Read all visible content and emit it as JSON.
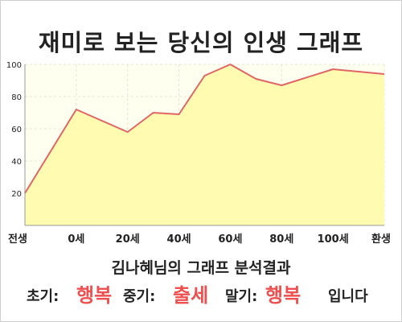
{
  "title": "재미로 보는 당신의 인생 그래프",
  "chart_data": {
    "type": "area",
    "title": "재미로 보는 당신의 인생 그래프",
    "xlabel": "",
    "ylabel": "",
    "x_tick_labels": [
      "전생",
      "0세",
      "20세",
      "40세",
      "60세",
      "80세",
      "100세",
      "환생"
    ],
    "y_ticks": [
      20,
      40,
      60,
      80,
      100
    ],
    "ylim": [
      0,
      100
    ],
    "grid": true,
    "series": [
      {
        "points": [
          {
            "x": "전생",
            "y": 20
          },
          {
            "x": "0세",
            "y": 72
          },
          {
            "x": "20세",
            "y": 58
          },
          {
            "x": "30세",
            "y": 70
          },
          {
            "x": "40세",
            "y": 69
          },
          {
            "x": "50세",
            "y": 93
          },
          {
            "x": "60세",
            "y": 100
          },
          {
            "x": "70세",
            "y": 91
          },
          {
            "x": "80세",
            "y": 87
          },
          {
            "x": "100세",
            "y": 97
          },
          {
            "x": "환생",
            "y": 94
          }
        ]
      }
    ],
    "colors": {
      "line": "#e06666",
      "fill": "#fffbb0",
      "plot_bg": "#fffff0",
      "grid": "#e4e4d0"
    }
  },
  "analysis": {
    "subtitle": "김나혜님의 그래프 분석결과",
    "early_label": "초기:",
    "early_value": "행복",
    "mid_label": "중기:",
    "mid_value": "출세",
    "late_label": "말기:",
    "late_value": "행복",
    "ending": "입니다"
  }
}
